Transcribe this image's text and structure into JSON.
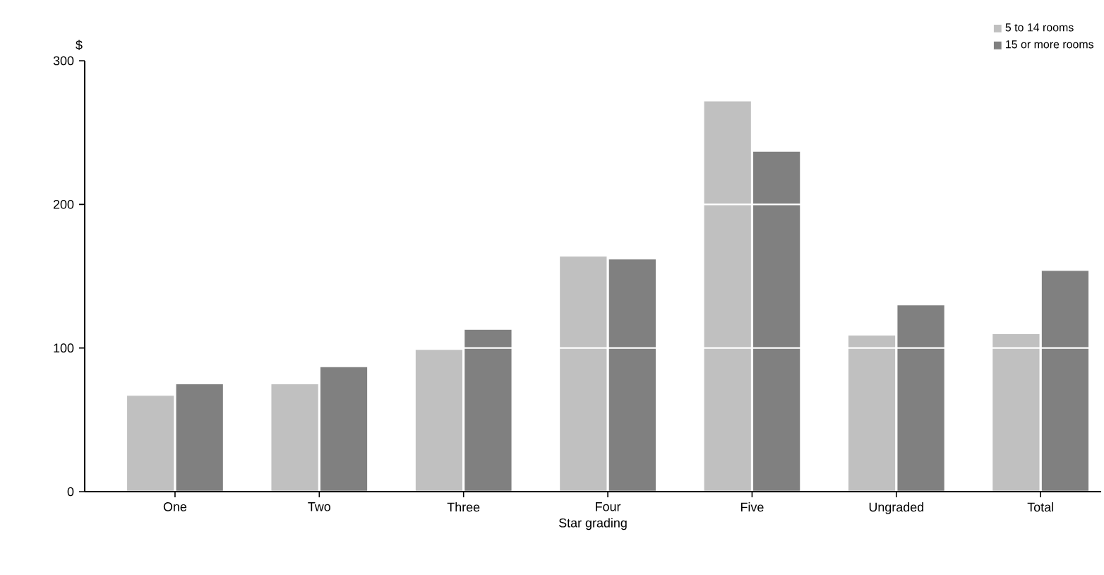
{
  "chart_data": {
    "type": "bar",
    "xlabel": "Star grading",
    "ylabel": "$",
    "categories": [
      "One",
      "Two",
      "Three",
      "Four",
      "Five",
      "Ungraded",
      "Total"
    ],
    "series": [
      {
        "name": "5 to 14 rooms",
        "color": "#c0c0c0",
        "values": [
          67,
          75,
          99,
          164,
          272,
          109,
          110
        ]
      },
      {
        "name": "15 or more rooms",
        "color": "#808080",
        "values": [
          75,
          87,
          113,
          162,
          237,
          130,
          154
        ]
      }
    ],
    "ylim": [
      0,
      300
    ],
    "yticks": [
      0,
      100,
      200,
      300
    ],
    "grid": "y",
    "legend": "top right"
  }
}
